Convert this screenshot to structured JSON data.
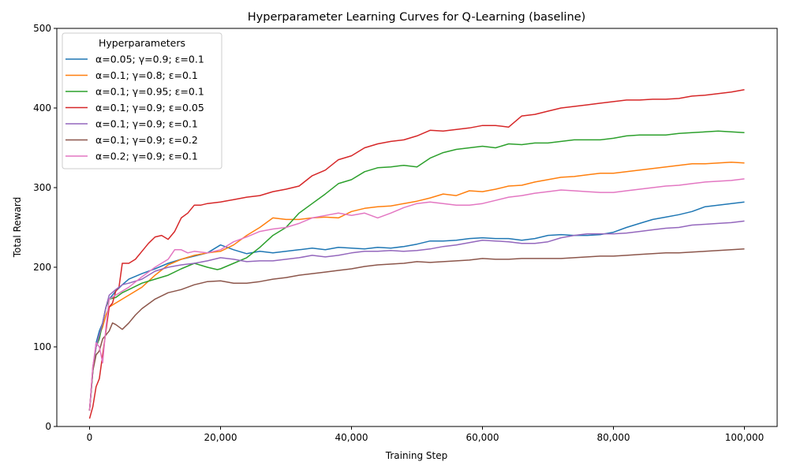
{
  "chart_data": {
    "type": "line",
    "title": "Hyperparameter Learning Curves for Q-Learning (baseline)",
    "xlabel": "Training Step",
    "ylabel": "Total Reward",
    "xlim": [
      -5000,
      105000
    ],
    "ylim": [
      0,
      500
    ],
    "xticks": [
      0,
      20000,
      40000,
      60000,
      80000,
      100000
    ],
    "xtick_labels": [
      "0",
      "20,000",
      "40,000",
      "60,000",
      "80,000",
      "100,000"
    ],
    "yticks": [
      0,
      100,
      200,
      300,
      400,
      500
    ],
    "ytick_labels": [
      "0",
      "100",
      "200",
      "300",
      "400",
      "500"
    ],
    "grid": false,
    "legend": {
      "title": "Hyperparameters",
      "position": "top-left"
    },
    "series": [
      {
        "name": "α=0.05; γ=0.9; ε=0.1",
        "color": "#1f77b4",
        "x": [
          0,
          500,
          1000,
          1500,
          2000,
          2500,
          3000,
          4000,
          5000,
          6000,
          8000,
          10000,
          12000,
          14000,
          16000,
          18000,
          20000,
          22000,
          24000,
          26000,
          28000,
          30000,
          32000,
          34000,
          36000,
          38000,
          40000,
          42000,
          44000,
          46000,
          48000,
          50000,
          52000,
          54000,
          56000,
          58000,
          60000,
          62000,
          64000,
          66000,
          68000,
          70000,
          72000,
          74000,
          76000,
          78000,
          80000,
          82000,
          84000,
          86000,
          88000,
          90000,
          92000,
          94000,
          96000,
          98000,
          100000
        ],
        "y": [
          20,
          70,
          105,
          120,
          130,
          150,
          160,
          170,
          178,
          185,
          192,
          198,
          205,
          210,
          214,
          218,
          228,
          222,
          217,
          220,
          218,
          220,
          222,
          224,
          222,
          225,
          224,
          223,
          225,
          224,
          226,
          229,
          233,
          233,
          234,
          236,
          237,
          236,
          236,
          234,
          236,
          240,
          241,
          240,
          240,
          241,
          244,
          250,
          255,
          260,
          263,
          266,
          270,
          276,
          278,
          280,
          282
        ]
      },
      {
        "name": "α=0.1; γ=0.8; ε=0.1",
        "color": "#ff7f0e",
        "x": [
          0,
          500,
          1000,
          1500,
          2000,
          2500,
          3000,
          4000,
          5000,
          6000,
          8000,
          10000,
          12000,
          14000,
          16000,
          18000,
          20000,
          22000,
          24000,
          26000,
          28000,
          30000,
          32000,
          34000,
          36000,
          38000,
          40000,
          42000,
          44000,
          46000,
          48000,
          50000,
          52000,
          54000,
          56000,
          58000,
          60000,
          62000,
          64000,
          66000,
          68000,
          70000,
          72000,
          74000,
          76000,
          78000,
          80000,
          82000,
          84000,
          86000,
          88000,
          90000,
          92000,
          94000,
          96000,
          98000,
          100000
        ],
        "y": [
          20,
          75,
          100,
          115,
          125,
          140,
          150,
          155,
          160,
          165,
          175,
          190,
          203,
          210,
          215,
          218,
          220,
          228,
          240,
          250,
          262,
          260,
          260,
          262,
          263,
          262,
          270,
          274,
          276,
          277,
          280,
          283,
          287,
          292,
          290,
          296,
          295,
          298,
          302,
          303,
          307,
          310,
          313,
          314,
          316,
          318,
          318,
          320,
          322,
          324,
          326,
          328,
          330,
          330,
          331,
          332,
          331
        ]
      },
      {
        "name": "α=0.1; γ=0.95; ε=0.1",
        "color": "#2ca02c",
        "x": [
          0,
          500,
          1000,
          1500,
          2000,
          2500,
          3000,
          4000,
          5000,
          6000,
          8000,
          10000,
          12000,
          14000,
          16000,
          18000,
          19500,
          20000,
          22000,
          24000,
          26000,
          28000,
          30000,
          32000,
          34000,
          36000,
          38000,
          40000,
          42000,
          44000,
          46000,
          48000,
          50000,
          52000,
          54000,
          56000,
          58000,
          60000,
          62000,
          64000,
          66000,
          68000,
          70000,
          72000,
          74000,
          76000,
          78000,
          80000,
          82000,
          84000,
          86000,
          88000,
          90000,
          92000,
          94000,
          96000,
          98000,
          100000
        ],
        "y": [
          20,
          70,
          100,
          110,
          130,
          150,
          160,
          162,
          168,
          172,
          180,
          185,
          190,
          198,
          205,
          200,
          197,
          198,
          205,
          212,
          225,
          240,
          250,
          268,
          280,
          292,
          305,
          310,
          320,
          325,
          326,
          328,
          326,
          337,
          344,
          348,
          350,
          352,
          350,
          355,
          354,
          356,
          356,
          358,
          360,
          360,
          360,
          362,
          365,
          366,
          366,
          366,
          368,
          369,
          370,
          371,
          370,
          369
        ]
      },
      {
        "name": "α=0.1; γ=0.9; ε=0.05",
        "color": "#d62728",
        "x": [
          0,
          500,
          1000,
          1500,
          2000,
          2500,
          3000,
          3500,
          4000,
          4500,
          5000,
          6000,
          7000,
          8000,
          9000,
          10000,
          11000,
          12000,
          13000,
          14000,
          15000,
          16000,
          17000,
          18000,
          20000,
          22000,
          24000,
          26000,
          28000,
          30000,
          32000,
          34000,
          36000,
          38000,
          40000,
          42000,
          44000,
          46000,
          48000,
          50000,
          52000,
          54000,
          56000,
          58000,
          60000,
          62000,
          64000,
          66000,
          68000,
          70000,
          72000,
          74000,
          76000,
          78000,
          80000,
          82000,
          84000,
          86000,
          88000,
          90000,
          92000,
          94000,
          96000,
          98000,
          100000
        ],
        "y": [
          10,
          25,
          50,
          60,
          90,
          120,
          150,
          155,
          170,
          175,
          205,
          205,
          210,
          220,
          230,
          238,
          240,
          235,
          245,
          262,
          268,
          278,
          278,
          280,
          282,
          285,
          288,
          290,
          295,
          298,
          302,
          315,
          322,
          335,
          340,
          350,
          355,
          358,
          360,
          365,
          372,
          371,
          373,
          375,
          378,
          378,
          376,
          390,
          392,
          396,
          400,
          402,
          404,
          406,
          408,
          410,
          410,
          411,
          411,
          412,
          415,
          416,
          418,
          420,
          423
        ]
      },
      {
        "name": "α=0.1; γ=0.9; ε=0.1",
        "color": "#9467bd",
        "x": [
          0,
          500,
          1000,
          1500,
          2000,
          2500,
          3000,
          4000,
          5000,
          6000,
          8000,
          10000,
          12000,
          14000,
          16000,
          18000,
          20000,
          22000,
          24000,
          26000,
          28000,
          30000,
          32000,
          34000,
          36000,
          38000,
          40000,
          42000,
          44000,
          46000,
          48000,
          50000,
          52000,
          54000,
          56000,
          58000,
          60000,
          62000,
          64000,
          66000,
          68000,
          70000,
          72000,
          74000,
          76000,
          78000,
          80000,
          82000,
          84000,
          86000,
          88000,
          90000,
          92000,
          94000,
          96000,
          98000,
          100000
        ],
        "y": [
          20,
          75,
          100,
          115,
          130,
          150,
          165,
          172,
          178,
          180,
          185,
          195,
          200,
          203,
          205,
          208,
          212,
          210,
          207,
          208,
          208,
          210,
          212,
          215,
          213,
          215,
          218,
          220,
          220,
          221,
          220,
          221,
          223,
          226,
          228,
          231,
          234,
          233,
          232,
          230,
          230,
          232,
          237,
          240,
          242,
          242,
          242,
          243,
          245,
          247,
          249,
          250,
          253,
          254,
          255,
          256,
          258
        ]
      },
      {
        "name": "α=0.1; γ=0.9; ε=0.2",
        "color": "#8c564b",
        "x": [
          0,
          500,
          1000,
          1500,
          2000,
          2500,
          3000,
          3500,
          4000,
          5000,
          6000,
          7000,
          8000,
          10000,
          12000,
          14000,
          16000,
          18000,
          20000,
          22000,
          24000,
          26000,
          28000,
          30000,
          32000,
          34000,
          36000,
          38000,
          40000,
          42000,
          44000,
          46000,
          48000,
          50000,
          52000,
          54000,
          56000,
          58000,
          60000,
          62000,
          64000,
          66000,
          68000,
          70000,
          72000,
          74000,
          76000,
          78000,
          80000,
          82000,
          84000,
          86000,
          88000,
          90000,
          92000,
          94000,
          96000,
          98000,
          100000
        ],
        "y": [
          20,
          70,
          90,
          95,
          110,
          115,
          120,
          130,
          128,
          122,
          130,
          140,
          148,
          160,
          168,
          172,
          178,
          182,
          183,
          180,
          180,
          182,
          185,
          187,
          190,
          192,
          194,
          196,
          198,
          201,
          203,
          204,
          205,
          207,
          206,
          207,
          208,
          209,
          211,
          210,
          210,
          211,
          211,
          211,
          211,
          212,
          213,
          214,
          214,
          215,
          216,
          217,
          218,
          218,
          219,
          220,
          221,
          222,
          223
        ]
      },
      {
        "name": "α=0.2; γ=0.9; ε=0.1",
        "color": "#e377c2",
        "x": [
          0,
          500,
          1000,
          1500,
          2000,
          2500,
          3000,
          4000,
          5000,
          6000,
          8000,
          10000,
          12000,
          13000,
          14000,
          15000,
          16000,
          18000,
          20000,
          22000,
          24000,
          26000,
          28000,
          30000,
          32000,
          34000,
          36000,
          38000,
          40000,
          42000,
          44000,
          46000,
          48000,
          50000,
          52000,
          54000,
          56000,
          58000,
          60000,
          62000,
          64000,
          66000,
          68000,
          70000,
          72000,
          74000,
          76000,
          78000,
          80000,
          82000,
          84000,
          86000,
          88000,
          90000,
          92000,
          94000,
          96000,
          98000,
          100000
        ],
        "y": [
          20,
          75,
          105,
          100,
          80,
          125,
          160,
          165,
          170,
          175,
          188,
          200,
          210,
          222,
          222,
          218,
          220,
          218,
          222,
          232,
          238,
          245,
          248,
          250,
          255,
          262,
          265,
          268,
          265,
          268,
          262,
          268,
          275,
          280,
          282,
          280,
          278,
          278,
          280,
          284,
          288,
          290,
          293,
          295,
          297,
          296,
          295,
          294,
          294,
          296,
          298,
          300,
          302,
          303,
          305,
          307,
          308,
          309,
          311
        ]
      }
    ]
  }
}
